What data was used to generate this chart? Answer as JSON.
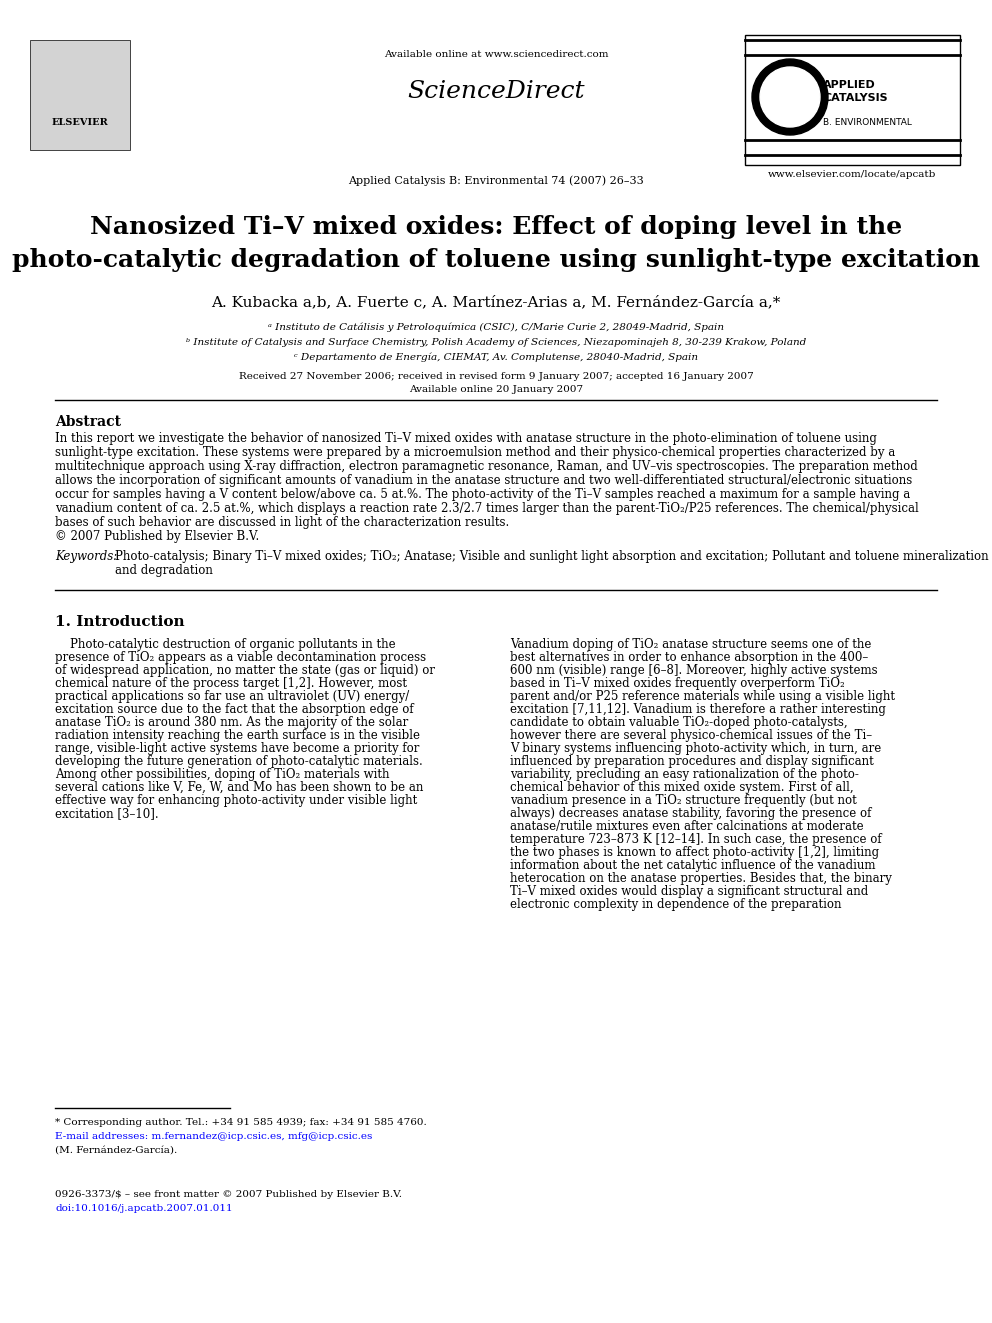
{
  "page_bg": "#ffffff",
  "header_available_text": "Available online at www.sciencedirect.com",
  "journal_ref": "Applied Catalysis B: Environmental 74 (2007) 26–33",
  "website": "www.elsevier.com/locate/apcatb",
  "title_line1": "Nanosized Ti–V mixed oxides: Effect of doping level in the",
  "title_line2": "photo-catalytic degradation of toluene using sunlight-type excitation",
  "authors": "A. Kubacka a,b, A. Fuerte c, A. Martínez-Arias a, M. Fernández-García a,*",
  "affil_a": "                           a Instituto de Catálisis y Petroloquímica (CSIC), C/Marie Curie 2, 28049-Madrid, Spain",
  "affil_b": "                        b Institute of Catalysis and Surface Chemistry, Polish Academy of Sciences, Niezapominajeh 8, 30-239 Krakow, Poland",
  "affil_c": "                                c Departamento de Energía, CIEMAT, Av. Complutense, 28040-Madrid, Spain",
  "received_line": "Received 27 November 2006; received in revised form 9 January 2007; accepted 16 January 2007",
  "available_line": "Available online 20 January 2007",
  "abstract_title": "Abstract",
  "abstract_text": "In this report we investigate the behavior of nanosized Ti–V mixed oxides with anatase structure in the photo-elimination of toluene using sunlight-type excitation. These systems were prepared by a microemulsion method and their physico-chemical properties characterized by a multitechnique approach using X-ray diffraction, electron paramagnetic resonance, Raman, and UV–vis spectroscopies. The preparation method allows the incorporation of significant amounts of vanadium in the anatase structure and two well-differentiated structural/electronic situations occur for samples having a V content below/above ca. 5 at.%. The photo-activity of the Ti–V samples reached a maximum for a sample having a vanadium content of ca. 2.5 at.%, which displays a reaction rate 2.3/2.7 times larger than the parent-TiO₂/P25 references. The chemical/physical bases of such behavior are discussed in light of the characterization results.\n© 2007 Published by Elsevier B.V.",
  "keywords_label": "Keywords: ",
  "keywords_text": "Photo-catalysis; Binary Ti–V mixed oxides; TiO₂; Anatase; Visible and sunlight light absorption and excitation; Pollutant and toluene mineralization and degradation",
  "section1_title": "1. Introduction",
  "col1_para1": "Photo-catalytic destruction of organic pollutants in the presence of TiO₂ appears as a viable decontamination process of widespread application, no matter the state (gas or liquid) or chemical nature of the process target [1,2]. However, most practical applications so far use an ultraviolet (UV) energy/excitation source due to the fact that the absorption edge of anatase TiO₂ is around 380 nm. As the majority of the solar radiation intensity reaching the earth surface is in the visible range, visible-light active systems have become a priority for developing the future generation of photo-catalytic materials. Among other possibilities, doping of TiO₂ materials with several cations like V, Fe, W, and Mo has been shown to be an effective way for enhancing photo-activity under visible light excitation [3–10].",
  "col2_para1": "Vanadium doping of TiO₂ anatase structure seems one of the best alternatives in order to enhance absorption in the 400–600 nm (visible) range [6–8]. Moreover, highly active systems based in Ti–V mixed oxides frequently overperform TiO₂ parent and/or P25 reference materials while using a visible light excitation [7,11,12]. Vanadium is therefore a rather interesting candidate to obtain valuable TiO₂-doped photo-catalysts, however there are several physico-chemical issues of the Ti–V binary systems influencing photo-activity which, in turn, are influenced by preparation procedures and display significant variability, precluding an easy rationalization of the photo-chemical behavior of this mixed oxide system. First of all, vanadium presence in a TiO₂ structure frequently (but not always) decreases anatase stability, favoring the presence of anatase/rutile mixtures even after calcinations at moderate temperature 723–873 K [12–14]. In such case, the presence of the two phases is known to affect photo-activity [1,2], limiting information about the net catalytic influence of the vanadium heterocation on the anatase properties. Besides that, the binary Ti–V mixed oxides would display a significant structural and electronic complexity in dependence of the preparation",
  "footnote_star": "* Corresponding author. Tel.: +34 91 585 4939; fax: +34 91 585 4760.",
  "footnote_email": "E-mail addresses: m.fernandez@icp.csic.es, mfg@icp.csic.es",
  "footnote_name": "(M. Fernández-García).",
  "bottom_issn": "0926-3373/$ – see front matter © 2007 Published by Elsevier B.V.",
  "bottom_doi": "doi:10.1016/j.apcatb.2007.01.011"
}
